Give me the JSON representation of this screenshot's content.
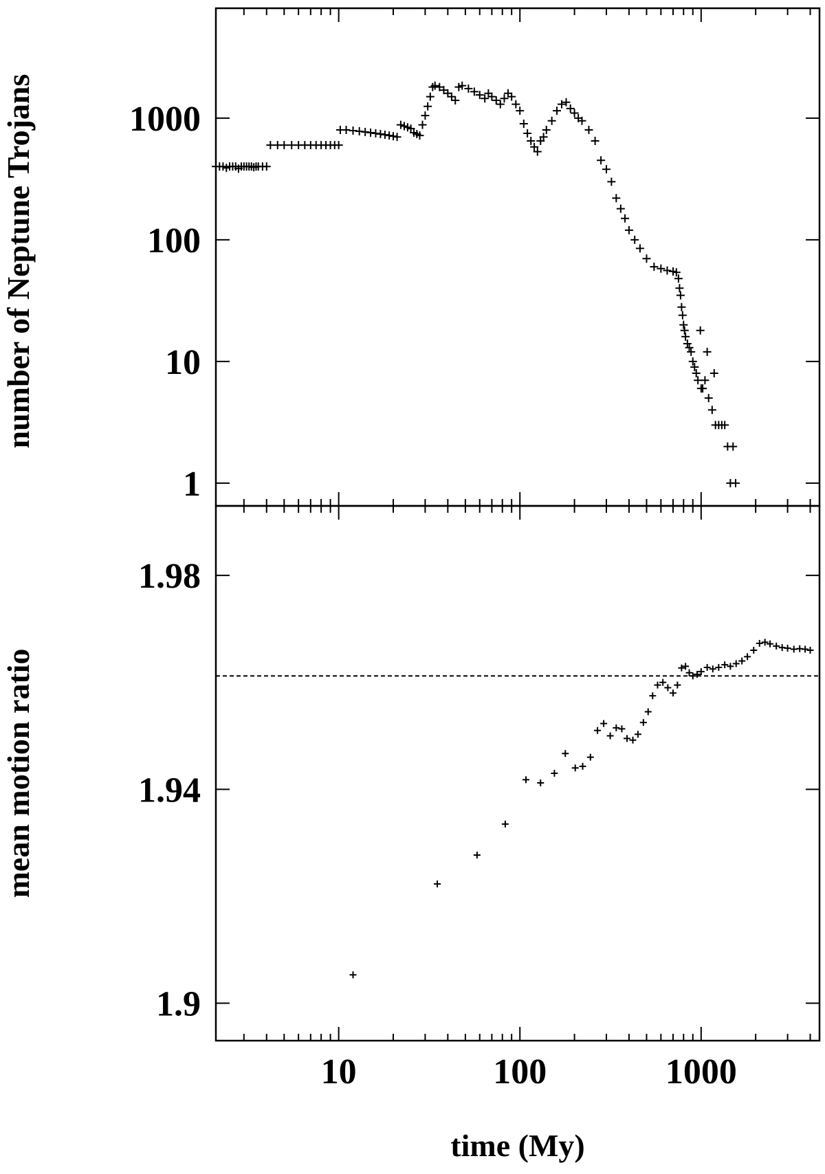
{
  "chart_data": [
    {
      "type": "scatter",
      "panel": "top",
      "title": "",
      "xlabel": "",
      "ylabel": "number of Neptune Trojans",
      "xscale": "log",
      "yscale": "log",
      "xlim": [
        2.1,
        4500
      ],
      "ylim": [
        0.65,
        8000
      ],
      "yticks": [
        1,
        10,
        100,
        1000
      ],
      "ytick_labels": [
        "1",
        "10",
        "100",
        "1000"
      ],
      "grid": false,
      "series": [
        {
          "marker": "+",
          "points": [
            [
              2.1,
              400
            ],
            [
              2.2,
              400
            ],
            [
              2.3,
              400
            ],
            [
              2.4,
              390
            ],
            [
              2.5,
              400
            ],
            [
              2.6,
              400
            ],
            [
              2.7,
              400
            ],
            [
              2.8,
              385
            ],
            [
              2.9,
              400
            ],
            [
              3.0,
              400
            ],
            [
              3.1,
              400
            ],
            [
              3.2,
              400
            ],
            [
              3.3,
              400
            ],
            [
              3.4,
              395
            ],
            [
              3.5,
              400
            ],
            [
              3.6,
              400
            ],
            [
              3.8,
              400
            ],
            [
              4.0,
              400
            ],
            [
              4.2,
              600
            ],
            [
              4.6,
              600
            ],
            [
              5.0,
              600
            ],
            [
              5.5,
              600
            ],
            [
              6.0,
              600
            ],
            [
              6.5,
              600
            ],
            [
              7.0,
              600
            ],
            [
              7.5,
              600
            ],
            [
              8.0,
              600
            ],
            [
              8.5,
              600
            ],
            [
              9.0,
              600
            ],
            [
              9.5,
              600
            ],
            [
              10.0,
              600
            ],
            [
              10.2,
              800
            ],
            [
              11.0,
              800
            ],
            [
              12.0,
              790
            ],
            [
              13.0,
              780
            ],
            [
              14.0,
              770
            ],
            [
              15.0,
              760
            ],
            [
              16.0,
              750
            ],
            [
              17.0,
              740
            ],
            [
              18.0,
              730
            ],
            [
              19.0,
              720
            ],
            [
              20.0,
              710
            ],
            [
              21.0,
              700
            ],
            [
              22.0,
              880
            ],
            [
              23.0,
              860
            ],
            [
              24.0,
              840
            ],
            [
              25.0,
              820
            ],
            [
              26.0,
              760
            ],
            [
              27.0,
              740
            ],
            [
              28.0,
              720
            ],
            [
              29.0,
              880
            ],
            [
              30.0,
              1050
            ],
            [
              31.0,
              1250
            ],
            [
              32.0,
              1500
            ],
            [
              33.0,
              1800
            ],
            [
              34.0,
              1850
            ],
            [
              36.0,
              1800
            ],
            [
              38.0,
              1700
            ],
            [
              40.0,
              1600
            ],
            [
              42.0,
              1500
            ],
            [
              44.0,
              1400
            ],
            [
              46.0,
              1800
            ],
            [
              48.0,
              1850
            ],
            [
              52.0,
              1750
            ],
            [
              56.0,
              1650
            ],
            [
              60.0,
              1550
            ],
            [
              64.0,
              1450
            ],
            [
              67.0,
              1600
            ],
            [
              70.0,
              1500
            ],
            [
              74.0,
              1400
            ],
            [
              78.0,
              1300
            ],
            [
              82.0,
              1450
            ],
            [
              86.0,
              1600
            ],
            [
              90.0,
              1500
            ],
            [
              95.0,
              1300
            ],
            [
              100.0,
              1150
            ],
            [
              105.0,
              900
            ],
            [
              110.0,
              750
            ],
            [
              115.0,
              650
            ],
            [
              120.0,
              580
            ],
            [
              125.0,
              530
            ],
            [
              130.0,
              650
            ],
            [
              135.0,
              700
            ],
            [
              140.0,
              800
            ],
            [
              150.0,
              950
            ],
            [
              160.0,
              1150
            ],
            [
              170.0,
              1300
            ],
            [
              180.0,
              1350
            ],
            [
              190.0,
              1200
            ],
            [
              200.0,
              1100
            ],
            [
              210.0,
              1000
            ],
            [
              220.0,
              950
            ],
            [
              240.0,
              800
            ],
            [
              260.0,
              650
            ],
            [
              280.0,
              450
            ],
            [
              300.0,
              380
            ],
            [
              320.0,
              300
            ],
            [
              340.0,
              220
            ],
            [
              360.0,
              180
            ],
            [
              380.0,
              150
            ],
            [
              400.0,
              120
            ],
            [
              430.0,
              100
            ],
            [
              460.0,
              85
            ],
            [
              500.0,
              70
            ],
            [
              550.0,
              60
            ],
            [
              600.0,
              58
            ],
            [
              650.0,
              56
            ],
            [
              700.0,
              55
            ],
            [
              730.0,
              54
            ],
            [
              750.0,
              48
            ],
            [
              760.0,
              40
            ],
            [
              770.0,
              35
            ],
            [
              780.0,
              28
            ],
            [
              790.0,
              24
            ],
            [
              800.0,
              20
            ],
            [
              810.0,
              18
            ],
            [
              820.0,
              16
            ],
            [
              840.0,
              14
            ],
            [
              860.0,
              13
            ],
            [
              880.0,
              12
            ],
            [
              900.0,
              10
            ],
            [
              920.0,
              9
            ],
            [
              940.0,
              8
            ],
            [
              960.0,
              7
            ],
            [
              990.0,
              18
            ],
            [
              1000.0,
              6
            ],
            [
              1020.0,
              6
            ],
            [
              1050.0,
              7
            ],
            [
              1080.0,
              12
            ],
            [
              1100.0,
              5
            ],
            [
              1150.0,
              4
            ],
            [
              1180.0,
              8
            ],
            [
              1200.0,
              3
            ],
            [
              1250.0,
              3
            ],
            [
              1300.0,
              3
            ],
            [
              1350.0,
              3
            ],
            [
              1400.0,
              2
            ],
            [
              1450.0,
              1
            ],
            [
              1500.0,
              2
            ],
            [
              1550.0,
              1
            ]
          ]
        }
      ]
    },
    {
      "type": "scatter",
      "panel": "bottom",
      "title": "",
      "xlabel": "time (My)",
      "ylabel": "mean motion ratio",
      "xscale": "log",
      "yscale": "linear",
      "xlim": [
        2.1,
        4500
      ],
      "ylim": [
        1.893,
        1.993
      ],
      "yticks": [
        1.9,
        1.94,
        1.98
      ],
      "ytick_labels": [
        "1.9",
        "1.94",
        "1.98"
      ],
      "xticks": [
        10,
        100,
        1000
      ],
      "xtick_labels": [
        "10",
        "100",
        "1000"
      ],
      "reference_line": 1.9612,
      "grid": false,
      "series": [
        {
          "marker": "+",
          "points": [
            [
              12,
              1.9053
            ],
            [
              35,
              1.9223
            ],
            [
              58,
              1.9277
            ],
            [
              83,
              1.9335
            ],
            [
              108,
              1.9418
            ],
            [
              130,
              1.9412
            ],
            [
              155,
              1.943
            ],
            [
              178,
              1.9467
            ],
            [
              202,
              1.944
            ],
            [
              222,
              1.9443
            ],
            [
              245,
              1.946
            ],
            [
              268,
              1.951
            ],
            [
              290,
              1.9523
            ],
            [
              315,
              1.95
            ],
            [
              340,
              1.9515
            ],
            [
              365,
              1.9513
            ],
            [
              390,
              1.9495
            ],
            [
              420,
              1.9492
            ],
            [
              448,
              1.9503
            ],
            [
              480,
              1.9525
            ],
            [
              510,
              1.9545
            ],
            [
              540,
              1.9575
            ],
            [
              575,
              1.9595
            ],
            [
              615,
              1.96
            ],
            [
              655,
              1.959
            ],
            [
              700,
              1.958
            ],
            [
              740,
              1.9595
            ],
            [
              780,
              1.9627
            ],
            [
              820,
              1.963
            ],
            [
              860,
              1.9618
            ],
            [
              900,
              1.9612
            ],
            [
              950,
              1.9615
            ],
            [
              1000,
              1.962
            ],
            [
              1080,
              1.9628
            ],
            [
              1160,
              1.9625
            ],
            [
              1250,
              1.9628
            ],
            [
              1350,
              1.9633
            ],
            [
              1450,
              1.963
            ],
            [
              1560,
              1.9635
            ],
            [
              1680,
              1.964
            ],
            [
              1800,
              1.9648
            ],
            [
              1950,
              1.966
            ],
            [
              2100,
              1.9673
            ],
            [
              2250,
              1.9675
            ],
            [
              2400,
              1.9672
            ],
            [
              2600,
              1.9668
            ],
            [
              2800,
              1.9665
            ],
            [
              3000,
              1.9664
            ],
            [
              3250,
              1.9662
            ],
            [
              3500,
              1.9663
            ],
            [
              3750,
              1.9662
            ],
            [
              4000,
              1.966
            ]
          ]
        }
      ]
    }
  ]
}
